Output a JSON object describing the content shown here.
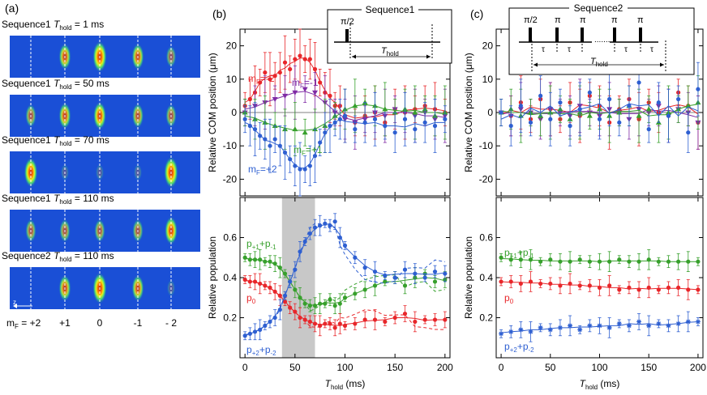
{
  "figure": {
    "panel_a": {
      "label": "(a)",
      "rows": [
        {
          "seq": "Sequence1",
          "thold": "T",
          "sub": "hold",
          "val": "= 1 ms"
        },
        {
          "seq": "Sequence1",
          "thold": "T",
          "sub": "hold",
          "val": "= 50 ms"
        },
        {
          "seq": "Sequence1",
          "thold": "T",
          "sub": "hold",
          "val": "= 70 ms"
        },
        {
          "seq": "Sequence1",
          "thold": "T",
          "sub": "hold",
          "val": "= 110 ms"
        },
        {
          "seq": "Sequence2",
          "thold": "T",
          "sub": "hold",
          "val": "= 110 ms"
        }
      ],
      "z_label": "z",
      "mf_prefix": "m",
      "mf_sub": "F",
      "mf_labels": [
        "= +2",
        "+1",
        "0",
        "-1",
        "- 2"
      ],
      "blob_intensity": [
        [
          0.0,
          0.7,
          1.0,
          0.7,
          0.4
        ],
        [
          0.5,
          0.7,
          0.8,
          0.6,
          0.5
        ],
        [
          0.9,
          0.1,
          0.1,
          0.1,
          1.0
        ],
        [
          0.5,
          0.5,
          0.5,
          0.5,
          0.8
        ],
        [
          0.0,
          0.7,
          1.0,
          0.7,
          0.1
        ]
      ]
    },
    "panel_b": {
      "label": "(b)",
      "sequence_title": "Sequence1",
      "pi2": "π/2",
      "t_label": "T",
      "t_sub": "hold"
    },
    "panel_c": {
      "label": "(c)",
      "sequence_title": "Sequence2",
      "pi2": "π/2",
      "pi": "π",
      "tau": "τ",
      "dots": ".......",
      "t_label": "T",
      "t_sub": "hold"
    }
  },
  "chart_data": [
    {
      "id": "b_top",
      "type": "scatter",
      "title": "",
      "ylabel": "Relative COM position (μm)",
      "xlabel": "",
      "xlim": [
        -5,
        205
      ],
      "ylim": [
        -25,
        25
      ],
      "yticks": [
        -20,
        -10,
        0,
        10,
        20
      ],
      "xticks": [
        0,
        50,
        100,
        150,
        200
      ],
      "series": [
        {
          "name": "m_F=-2",
          "label": "m",
          "sub": "F",
          "tail": "=-2",
          "color": "#e8262a",
          "marker": "circle",
          "x": [
            0,
            5,
            10,
            15,
            20,
            25,
            30,
            35,
            40,
            45,
            50,
            55,
            60,
            65,
            70,
            75,
            80,
            85,
            90,
            95,
            100,
            110,
            120,
            130,
            140,
            150,
            160,
            170,
            180,
            190,
            200
          ],
          "y": [
            2,
            4,
            6,
            9,
            12,
            10,
            11,
            12,
            15,
            13,
            16,
            17,
            16,
            16,
            13,
            9,
            6,
            5,
            2,
            2,
            -1,
            -3,
            -1,
            0,
            -3,
            1,
            0,
            1,
            2,
            1,
            0
          ]
        },
        {
          "name": "m_F=-1",
          "label": "m",
          "sub": "F",
          "tail": "=-1",
          "color": "#7f2aa5",
          "marker": "triangle-down",
          "x": [
            0,
            10,
            20,
            30,
            40,
            50,
            60,
            70,
            80,
            90,
            100,
            110,
            120,
            130,
            140,
            150,
            160,
            170,
            180,
            190,
            200
          ],
          "y": [
            0,
            2,
            3,
            4,
            5,
            6,
            7,
            6,
            3,
            0,
            -2,
            -3,
            -2,
            0,
            -1,
            1,
            0,
            -1,
            0,
            -2,
            -1
          ]
        },
        {
          "name": "m_F=+1",
          "label": "m",
          "sub": "F",
          "tail": "=+1",
          "color": "#37a02c",
          "marker": "triangle-up",
          "x": [
            0,
            10,
            20,
            30,
            40,
            50,
            60,
            70,
            80,
            90,
            100,
            110,
            120,
            130,
            140,
            150,
            160,
            170,
            180,
            190,
            200
          ],
          "y": [
            0,
            -2,
            -3,
            -4,
            -5,
            -5,
            -6,
            -5,
            -4,
            -1,
            1,
            2,
            3,
            2,
            1,
            0,
            1,
            0,
            1,
            -1,
            0
          ]
        },
        {
          "name": "m_F=+2",
          "label": "m",
          "sub": "F",
          "tail": "=+2",
          "color": "#2e5fd1",
          "marker": "circle",
          "x": [
            0,
            5,
            10,
            15,
            20,
            25,
            30,
            35,
            40,
            45,
            50,
            55,
            60,
            65,
            70,
            75,
            80,
            85,
            90,
            95,
            100,
            110,
            120,
            130,
            140,
            150,
            160,
            170,
            180,
            190,
            200
          ],
          "y": [
            -2,
            -4,
            -5,
            -7,
            -8,
            -10,
            -8,
            -10,
            -12,
            -14,
            -16,
            -17,
            -17,
            -16,
            -13,
            -9,
            -6,
            -4,
            -3,
            -2,
            -1,
            -5,
            -3,
            -2,
            -4,
            -6,
            -2,
            -5,
            -3,
            -4,
            -2
          ]
        }
      ]
    },
    {
      "id": "b_bottom",
      "type": "scatter",
      "title": "",
      "ylabel": "Relative population",
      "xlabel": "T hold (ms)",
      "xlabel_main": "T",
      "xlabel_sub": "hold",
      "xlabel_unit": "(ms)",
      "xlim": [
        -5,
        205
      ],
      "ylim": [
        0.0,
        0.8
      ],
      "yticks": [
        0.2,
        0.4,
        0.6
      ],
      "xticks": [
        0,
        50,
        100,
        150,
        200
      ],
      "shaded": [
        37,
        70
      ],
      "series": [
        {
          "name": "p+1+p-1",
          "label_parts": [
            "p",
            "+1",
            "+p",
            "-1"
          ],
          "color": "#37a02c",
          "marker": "circle",
          "x": [
            0,
            5,
            10,
            15,
            20,
            25,
            30,
            35,
            40,
            45,
            50,
            55,
            60,
            65,
            70,
            75,
            80,
            85,
            90,
            95,
            100,
            110,
            120,
            130,
            140,
            150,
            160,
            170,
            180,
            190,
            200
          ],
          "y": [
            0.5,
            0.49,
            0.49,
            0.49,
            0.48,
            0.48,
            0.47,
            0.45,
            0.42,
            0.38,
            0.34,
            0.3,
            0.27,
            0.26,
            0.26,
            0.27,
            0.27,
            0.29,
            0.26,
            0.27,
            0.3,
            0.32,
            0.34,
            0.36,
            0.38,
            0.4,
            0.36,
            0.4,
            0.42,
            0.38,
            0.39
          ]
        },
        {
          "name": "p0",
          "label_parts": [
            "p",
            "0",
            "",
            ""
          ],
          "color": "#e8262a",
          "marker": "circle",
          "x": [
            0,
            5,
            10,
            15,
            20,
            25,
            30,
            35,
            40,
            45,
            50,
            55,
            60,
            65,
            70,
            75,
            80,
            85,
            90,
            95,
            100,
            110,
            120,
            130,
            140,
            150,
            160,
            170,
            180,
            190,
            200
          ],
          "y": [
            0.39,
            0.38,
            0.38,
            0.37,
            0.36,
            0.35,
            0.33,
            0.31,
            0.28,
            0.25,
            0.23,
            0.2,
            0.19,
            0.18,
            0.17,
            0.16,
            0.17,
            0.17,
            0.15,
            0.17,
            0.16,
            0.17,
            0.19,
            0.19,
            0.18,
            0.2,
            0.22,
            0.18,
            0.19,
            0.19,
            0.19
          ]
        },
        {
          "name": "p+2+p-2",
          "label_parts": [
            "p",
            "+2",
            "+p",
            "-2"
          ],
          "color": "#2e5fd1",
          "marker": "circle",
          "x": [
            0,
            5,
            10,
            15,
            20,
            25,
            30,
            35,
            40,
            45,
            50,
            55,
            60,
            65,
            70,
            75,
            80,
            85,
            90,
            95,
            100,
            110,
            120,
            130,
            140,
            150,
            160,
            170,
            180,
            190,
            200
          ],
          "y": [
            0.11,
            0.12,
            0.13,
            0.14,
            0.16,
            0.18,
            0.2,
            0.24,
            0.31,
            0.38,
            0.44,
            0.53,
            0.58,
            0.62,
            0.65,
            0.66,
            0.67,
            0.66,
            0.68,
            0.6,
            0.56,
            0.5,
            0.45,
            0.43,
            0.41,
            0.4,
            0.44,
            0.42,
            0.4,
            0.43,
            0.42
          ]
        }
      ]
    },
    {
      "id": "c_top",
      "type": "scatter",
      "title": "",
      "ylabel": "Relative COM position (μm)",
      "xlabel": "",
      "xlim": [
        -5,
        205
      ],
      "ylim": [
        -25,
        25
      ],
      "yticks": [
        -20,
        -10,
        0,
        10,
        20
      ],
      "xticks": [
        0,
        50,
        100,
        150,
        200
      ],
      "series": [
        {
          "name": "m_F=-2",
          "color": "#e8262a",
          "marker": "circle",
          "x": [
            0,
            10,
            20,
            30,
            40,
            50,
            60,
            70,
            80,
            90,
            100,
            110,
            120,
            130,
            140,
            150,
            160,
            170,
            180,
            190,
            200
          ],
          "y": [
            0,
            -1,
            3,
            -2,
            4,
            1,
            -2,
            3,
            -1,
            5,
            2,
            -3,
            1,
            4,
            -2,
            3,
            0,
            -1,
            6,
            2,
            -3
          ]
        },
        {
          "name": "m_F=-1",
          "color": "#7f2aa5",
          "marker": "triangle-down",
          "x": [
            0,
            10,
            20,
            30,
            40,
            50,
            60,
            70,
            80,
            90,
            100,
            110,
            120,
            130,
            140,
            150,
            160,
            170,
            180,
            190,
            200
          ],
          "y": [
            0,
            -1,
            1,
            0,
            -2,
            1,
            0,
            -1,
            2,
            0,
            -1,
            1,
            0,
            -2,
            1,
            0,
            2,
            -1,
            1,
            0,
            -3
          ]
        },
        {
          "name": "m_F=+1",
          "color": "#37a02c",
          "marker": "triangle-up",
          "x": [
            0,
            10,
            20,
            30,
            40,
            50,
            60,
            70,
            80,
            90,
            100,
            110,
            120,
            130,
            140,
            150,
            160,
            170,
            180,
            190,
            200
          ],
          "y": [
            0,
            1,
            -1,
            0,
            -1,
            0,
            1,
            -2,
            0,
            -1,
            1,
            -1,
            0,
            2,
            -1,
            1,
            -3,
            0,
            1,
            2,
            3
          ]
        },
        {
          "name": "m_F=+2",
          "color": "#2e5fd1",
          "marker": "circle",
          "x": [
            0,
            10,
            20,
            30,
            40,
            50,
            60,
            70,
            80,
            90,
            100,
            110,
            120,
            130,
            140,
            150,
            160,
            170,
            180,
            190,
            200
          ],
          "y": [
            0,
            -4,
            2,
            -3,
            5,
            -2,
            3,
            -4,
            1,
            6,
            -2,
            4,
            -3,
            2,
            9,
            -5,
            3,
            -1,
            4,
            -6,
            7
          ]
        }
      ]
    },
    {
      "id": "c_bottom",
      "type": "scatter",
      "title": "",
      "ylabel": "Relative population",
      "xlabel": "T hold (ms)",
      "xlabel_main": "T",
      "xlabel_sub": "hold",
      "xlabel_unit": "(ms)",
      "xlim": [
        -5,
        205
      ],
      "ylim": [
        0.0,
        0.8
      ],
      "yticks": [
        0.2,
        0.4,
        0.6
      ],
      "xticks": [
        0,
        50,
        100,
        150,
        200
      ],
      "series": [
        {
          "name": "p+1+p-1",
          "label_parts": [
            "p",
            "+1",
            "+p",
            "-1"
          ],
          "color": "#37a02c",
          "marker": "circle",
          "x": [
            0,
            10,
            20,
            30,
            40,
            50,
            60,
            70,
            80,
            90,
            100,
            110,
            120,
            130,
            140,
            150,
            160,
            170,
            180,
            190,
            200
          ],
          "y": [
            0.5,
            0.49,
            0.49,
            0.49,
            0.48,
            0.49,
            0.48,
            0.48,
            0.49,
            0.48,
            0.48,
            0.48,
            0.49,
            0.48,
            0.48,
            0.49,
            0.48,
            0.48,
            0.48,
            0.48,
            0.48
          ]
        },
        {
          "name": "p0",
          "label_parts": [
            "p",
            "0",
            "",
            ""
          ],
          "color": "#e8262a",
          "marker": "circle",
          "x": [
            0,
            10,
            20,
            30,
            40,
            50,
            60,
            70,
            80,
            90,
            100,
            110,
            120,
            130,
            140,
            150,
            160,
            170,
            180,
            190,
            200
          ],
          "y": [
            0.38,
            0.38,
            0.37,
            0.38,
            0.37,
            0.37,
            0.36,
            0.37,
            0.36,
            0.36,
            0.35,
            0.36,
            0.34,
            0.35,
            0.34,
            0.35,
            0.34,
            0.35,
            0.35,
            0.34,
            0.34
          ]
        },
        {
          "name": "p+2+p-2",
          "label_parts": [
            "p",
            "+2",
            "+p",
            "-2"
          ],
          "color": "#2e5fd1",
          "marker": "asterisk",
          "x": [
            0,
            10,
            20,
            30,
            40,
            50,
            60,
            70,
            80,
            90,
            100,
            110,
            120,
            130,
            140,
            150,
            160,
            170,
            180,
            190,
            200
          ],
          "y": [
            0.12,
            0.13,
            0.14,
            0.13,
            0.15,
            0.14,
            0.15,
            0.16,
            0.14,
            0.16,
            0.16,
            0.15,
            0.17,
            0.16,
            0.18,
            0.16,
            0.17,
            0.16,
            0.17,
            0.18,
            0.18
          ]
        }
      ]
    }
  ]
}
